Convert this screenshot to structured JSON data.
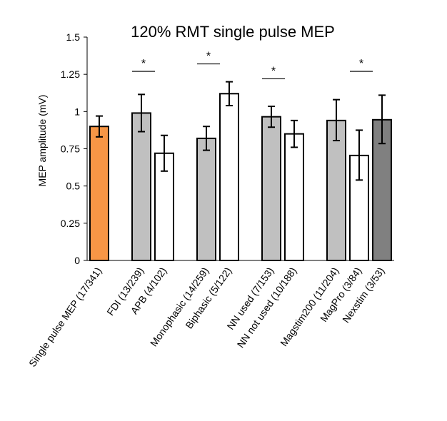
{
  "chart_data": {
    "type": "bar",
    "title": "120% RMT single pulse MEP",
    "xlabel": "",
    "ylabel": "MEP amplitude (mV)",
    "ylim": [
      0,
      1.5
    ],
    "yticks": [
      "0",
      "0.25",
      "0.5",
      "0.75",
      "1",
      "1.25",
      "1.5"
    ],
    "grid": false,
    "legend": "none",
    "significance_marker": "*",
    "categories": [
      {
        "label": "Single pulse MEP (17/341)",
        "value": 0.9,
        "err_low": 0.83,
        "err_high": 0.97,
        "color": "#F79646",
        "group": 0
      },
      {
        "label": "FDI (13/239)",
        "value": 0.99,
        "err_low": 0.865,
        "err_high": 1.115,
        "color": "#C0C0C0",
        "group": 1
      },
      {
        "label": "APB (4/102)",
        "value": 0.72,
        "err_low": 0.6,
        "err_high": 0.84,
        "color": "#FFFFFF",
        "group": 1
      },
      {
        "label": "Monophasic (14/259)",
        "value": 0.82,
        "err_low": 0.74,
        "err_high": 0.9,
        "color": "#C0C0C0",
        "group": 2
      },
      {
        "label": "Biphasic (5/122)",
        "value": 1.12,
        "err_low": 1.04,
        "err_high": 1.2,
        "color": "#FFFFFF",
        "group": 2
      },
      {
        "label": "NN used (7/153)",
        "value": 0.965,
        "err_low": 0.895,
        "err_high": 1.035,
        "color": "#C0C0C0",
        "group": 3
      },
      {
        "label": "NN not used (10/188)",
        "value": 0.85,
        "err_low": 0.76,
        "err_high": 0.94,
        "color": "#FFFFFF",
        "group": 3
      },
      {
        "label": "Magstim200 (11/204)",
        "value": 0.94,
        "err_low": 0.805,
        "err_high": 1.08,
        "color": "#C0C0C0",
        "group": 4
      },
      {
        "label": "MagPro (3/84)",
        "value": 0.705,
        "err_low": 0.54,
        "err_high": 0.875,
        "color": "#FFFFFF",
        "group": 4
      },
      {
        "label": "Nexstim (3/53)",
        "value": 0.945,
        "err_low": 0.785,
        "err_high": 1.11,
        "color": "#808080",
        "group": 4
      }
    ],
    "significance": [
      {
        "from": 1,
        "to": 2,
        "y": 1.27
      },
      {
        "from": 3,
        "to": 4,
        "y": 1.32
      },
      {
        "from": 5,
        "to": 6,
        "y": 1.22
      },
      {
        "from": 8,
        "to": 9,
        "y": 1.27
      }
    ]
  }
}
